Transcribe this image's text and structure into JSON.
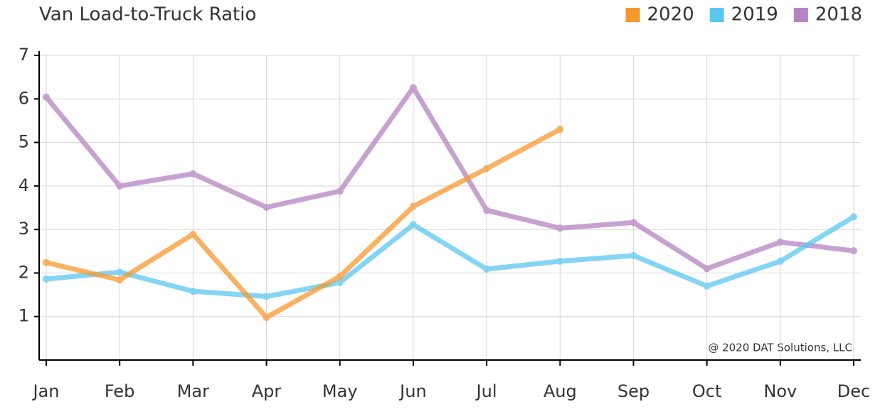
{
  "chart_data": {
    "type": "line",
    "title": "Van Load-to-Truck Ratio",
    "categories": [
      "Jan",
      "Feb",
      "Mar",
      "Apr",
      "May",
      "Jun",
      "Jul",
      "Aug",
      "Sep",
      "Oct",
      "Nov",
      "Dec"
    ],
    "series": [
      {
        "name": "2020",
        "color": "#f7982e",
        "values": [
          2.24,
          1.84,
          2.89,
          0.98,
          1.92,
          3.53,
          4.4,
          5.3,
          null,
          null,
          null,
          null
        ]
      },
      {
        "name": "2019",
        "color": "#5bc8f0",
        "values": [
          1.86,
          2.02,
          1.58,
          1.46,
          1.78,
          3.11,
          2.09,
          2.27,
          2.4,
          1.7,
          2.27,
          3.29
        ]
      },
      {
        "name": "2018",
        "color": "#b584c2",
        "values": [
          6.04,
          4.0,
          4.28,
          3.51,
          3.88,
          6.26,
          3.44,
          3.03,
          3.16,
          2.1,
          2.71,
          2.51
        ]
      }
    ],
    "ylim": [
      0,
      7
    ],
    "yticks": [
      1,
      2,
      3,
      4,
      5,
      6,
      7
    ],
    "grid": true,
    "legend": "top-right",
    "annotation": "@ 2020 DAT Solutions, LLC"
  }
}
